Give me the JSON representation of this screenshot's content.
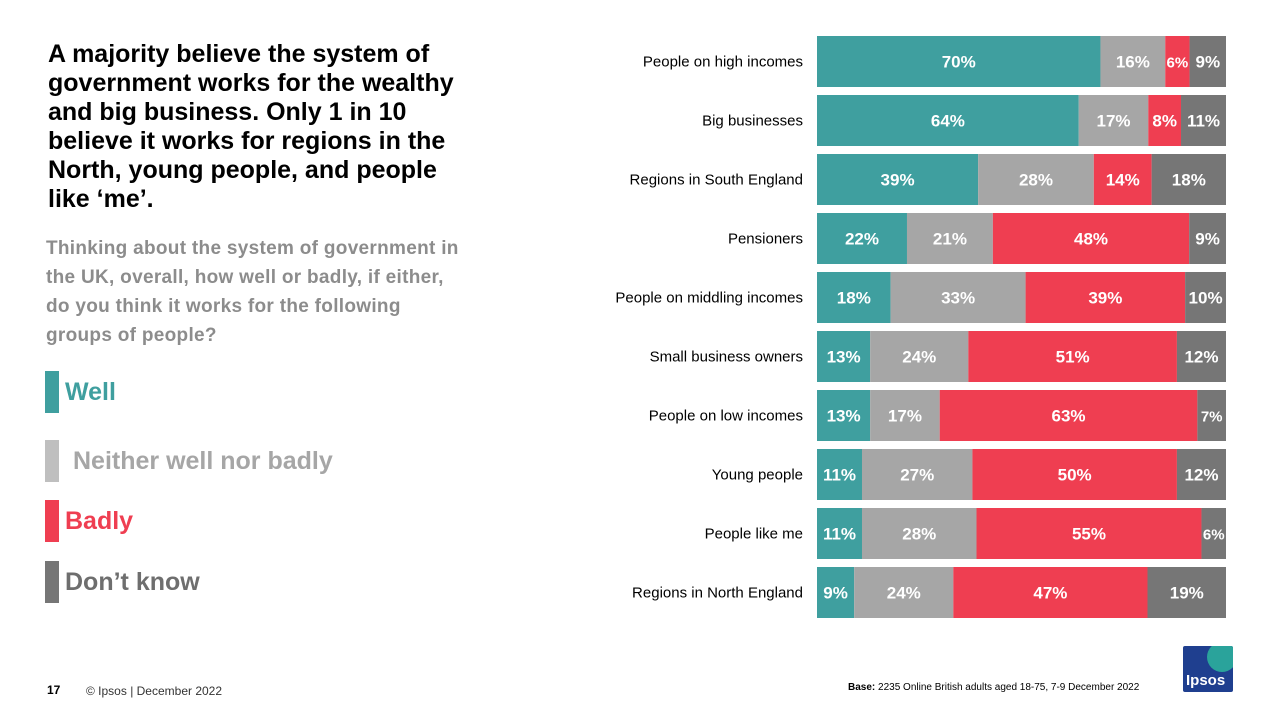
{
  "headline": "A majority believe the system of government works for the wealthy and big business. Only 1 in 10 believe it works for regions in the North, young people, and people like ‘me’.",
  "question": "Thinking about the system of government in the UK, overall, how well or badly, if either, do you think it works for the following  groups of people?",
  "legend": [
    {
      "label": "Well",
      "color": "#3f9f9f"
    },
    {
      "label": "Neither well nor badly",
      "color": "#a6a6a6"
    },
    {
      "label": "Badly",
      "color": "#ef3e51"
    },
    {
      "label": "Don’t know",
      "color": "#767676"
    }
  ],
  "chart_data": {
    "type": "bar",
    "stacked": true,
    "orientation": "horizontal",
    "categories": [
      "People on high incomes",
      "Big businesses",
      "Regions in South England",
      "Pensioners",
      "People on middling incomes",
      "Small business owners",
      "People on low incomes",
      "Young people",
      "People like me",
      "Regions in North England"
    ],
    "series": [
      {
        "name": "Well",
        "color": "#3f9f9f",
        "values": [
          70,
          64,
          39,
          22,
          18,
          13,
          13,
          11,
          11,
          9
        ]
      },
      {
        "name": "Neither well nor badly",
        "color": "#a6a6a6",
        "values": [
          16,
          17,
          28,
          21,
          33,
          24,
          17,
          27,
          28,
          24
        ]
      },
      {
        "name": "Badly",
        "color": "#ef3e51",
        "values": [
          6,
          8,
          14,
          48,
          39,
          51,
          63,
          50,
          55,
          47
        ]
      },
      {
        "name": "Don’t know",
        "color": "#767676",
        "values": [
          9,
          11,
          18,
          9,
          10,
          12,
          7,
          12,
          6,
          19
        ]
      }
    ],
    "value_suffix": "%"
  },
  "footer": {
    "page_number": "17",
    "copyright": "© Ipsos | December 2022",
    "base_label": "Base:",
    "base_text": " 2235 Online British adults aged 18-75, 7-9 December 2022",
    "logo_text": "Ipsos"
  }
}
